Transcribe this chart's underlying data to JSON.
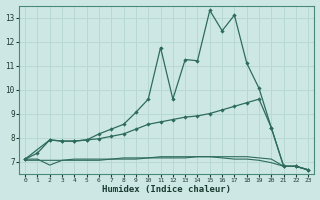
{
  "xlabel": "Humidex (Indice chaleur)",
  "bg_color": "#cde8e4",
  "line_color": "#2e6b5e",
  "grid_color": "#b8d8d4",
  "xlim": [
    -0.5,
    23.5
  ],
  "ylim": [
    6.5,
    13.5
  ],
  "xticks": [
    0,
    1,
    2,
    3,
    4,
    5,
    6,
    7,
    8,
    9,
    10,
    11,
    12,
    13,
    14,
    15,
    16,
    17,
    18,
    19,
    20,
    21,
    22,
    23
  ],
  "yticks": [
    7,
    8,
    9,
    10,
    11,
    12,
    13
  ],
  "series1_x": [
    0,
    1,
    2,
    3,
    4,
    5,
    6,
    7,
    8,
    9,
    10,
    11,
    12,
    13,
    14,
    15,
    16,
    17,
    18,
    19,
    20,
    21,
    22,
    23
  ],
  "series1_y": [
    7.1,
    7.35,
    7.9,
    7.85,
    7.85,
    7.9,
    8.15,
    8.35,
    8.55,
    9.05,
    9.6,
    11.75,
    9.6,
    11.25,
    11.2,
    13.3,
    12.45,
    13.1,
    11.1,
    10.05,
    8.4,
    6.8,
    6.8,
    6.65
  ],
  "series2_x": [
    0,
    2,
    3,
    4,
    5,
    6,
    7,
    8,
    9,
    10,
    11,
    12,
    13,
    14,
    15,
    16,
    17,
    18,
    19,
    20,
    21,
    22,
    23
  ],
  "series2_y": [
    7.1,
    7.9,
    7.85,
    7.85,
    7.9,
    7.95,
    8.05,
    8.15,
    8.35,
    8.55,
    8.65,
    8.75,
    8.85,
    8.9,
    9.0,
    9.15,
    9.3,
    9.45,
    9.6,
    8.4,
    6.8,
    6.8,
    6.65
  ],
  "series3_x": [
    0,
    1,
    2,
    3,
    4,
    5,
    6,
    7,
    8,
    9,
    10,
    11,
    12,
    13,
    14,
    15,
    16,
    17,
    18,
    19,
    20,
    21,
    22,
    23
  ],
  "series3_y": [
    7.1,
    7.1,
    6.85,
    7.05,
    7.1,
    7.1,
    7.1,
    7.1,
    7.15,
    7.15,
    7.15,
    7.2,
    7.2,
    7.2,
    7.2,
    7.2,
    7.15,
    7.1,
    7.1,
    7.05,
    6.95,
    6.8,
    6.8,
    6.65
  ],
  "series4_x": [
    0,
    1,
    2,
    3,
    4,
    5,
    6,
    7,
    8,
    9,
    10,
    11,
    12,
    13,
    14,
    15,
    16,
    17,
    18,
    19,
    20,
    21,
    22,
    23
  ],
  "series4_y": [
    7.05,
    7.05,
    7.05,
    7.05,
    7.05,
    7.05,
    7.05,
    7.1,
    7.1,
    7.1,
    7.15,
    7.15,
    7.15,
    7.15,
    7.2,
    7.2,
    7.2,
    7.2,
    7.2,
    7.15,
    7.1,
    6.8,
    6.8,
    6.65
  ]
}
